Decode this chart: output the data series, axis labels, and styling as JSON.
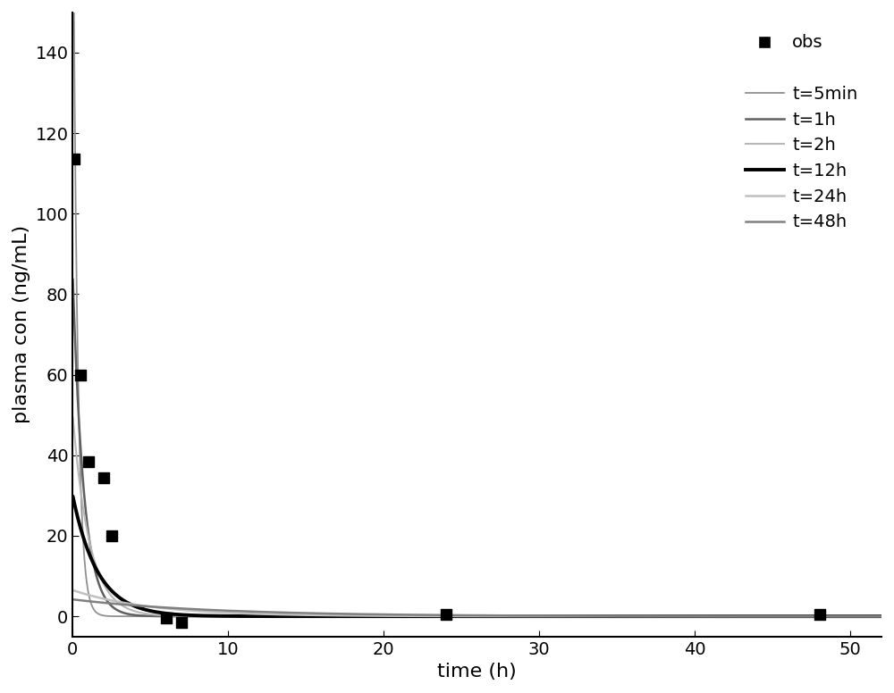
{
  "obs_x": [
    0.083,
    0.5,
    1.0,
    2.0,
    2.5,
    6.0,
    7.0,
    24.0,
    48.0
  ],
  "obs_y": [
    113.5,
    60.0,
    38.5,
    34.5,
    20.0,
    -0.5,
    -1.5,
    0.5,
    0.5
  ],
  "curves": [
    {
      "label": "t=5min",
      "color": "#909090",
      "lw": 1.3,
      "C0": 200.0,
      "k": 3.5
    },
    {
      "label": "t=1h",
      "color": "#606060",
      "lw": 1.8,
      "C0": 85.0,
      "k": 1.4
    },
    {
      "label": "t=2h",
      "color": "#b8b8b8",
      "lw": 1.5,
      "C0": 50.0,
      "k": 0.92
    },
    {
      "label": "t=12h",
      "color": "#000000",
      "lw": 2.8,
      "C0": 30.0,
      "k": 0.62
    },
    {
      "label": "t=24h",
      "color": "#c0c0c0",
      "lw": 1.8,
      "C0": 6.5,
      "k": 0.2
    },
    {
      "label": "t=48h",
      "color": "#808080",
      "lw": 1.8,
      "C0": 4.2,
      "k": 0.11
    }
  ],
  "xlabel": "time (h)",
  "ylabel": "plasma con (ng/mL)",
  "xlim": [
    0,
    52
  ],
  "ylim": [
    -5,
    150
  ],
  "xticks": [
    0,
    10,
    20,
    30,
    40,
    50
  ],
  "yticks": [
    0,
    20,
    40,
    60,
    80,
    100,
    120,
    140
  ],
  "obs_marker": "s",
  "obs_color": "#000000",
  "obs_markersize": 9,
  "legend_fontsize": 14,
  "axis_fontsize": 16,
  "tick_fontsize": 14,
  "background_color": "#ffffff",
  "figure_size": [
    10.0,
    7.76
  ],
  "dpi": 100
}
